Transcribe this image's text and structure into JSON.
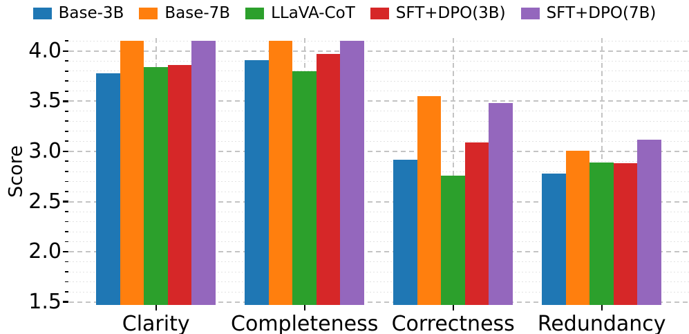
{
  "chart_data": {
    "type": "bar",
    "title": "",
    "ylabel": "Score",
    "xlabel": "",
    "categories": [
      "Clarity",
      "Completeness",
      "Correctness",
      "Redundancy"
    ],
    "series": [
      {
        "name": "Base-3B",
        "color": "#1f77b4",
        "values": [
          3.78,
          3.91,
          2.92,
          2.78
        ]
      },
      {
        "name": "Base-7B",
        "color": "#ff7f0e",
        "values": [
          4.1,
          4.1,
          3.55,
          3.01
        ]
      },
      {
        "name": "LLaVA-CoT",
        "color": "#2ca02c",
        "values": [
          3.84,
          3.8,
          2.76,
          2.89
        ]
      },
      {
        "name": "SFT+DPO(3B)",
        "color": "#d62728",
        "values": [
          3.86,
          3.97,
          3.09,
          2.88
        ]
      },
      {
        "name": "SFT+DPO(7B)",
        "color": "#9467bd",
        "values": [
          4.1,
          4.1,
          3.48,
          3.12
        ]
      }
    ],
    "ylim": [
      1.47,
      4.13
    ],
    "yticks_major": [
      1.5,
      2.0,
      2.5,
      3.0,
      3.5,
      4.0
    ],
    "ytick_labels": [
      "1.5",
      "2.0",
      "2.5",
      "3.0",
      "3.5",
      "4.0"
    ],
    "ytick_minor_step": 0.1,
    "ytick_minor_max": 4.1,
    "grid": {
      "major_horizontal": "dashed",
      "minor_horizontal": "dotted",
      "vertical_at_category_centers": "dashed"
    },
    "legend_position": "top"
  }
}
